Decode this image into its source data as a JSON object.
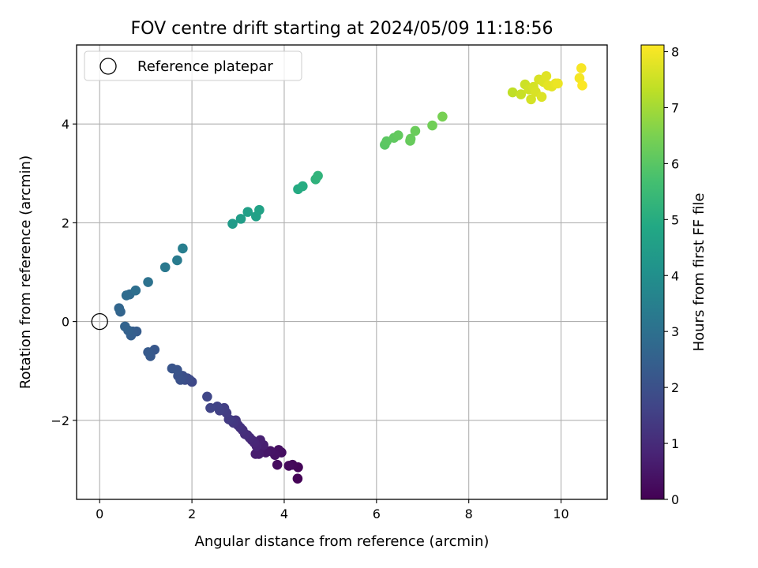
{
  "chart_data": {
    "type": "scatter",
    "title": "FOV centre drift starting at 2024/05/09 11:18:56",
    "xlabel": "Angular distance from reference (arcmin)",
    "ylabel": "Rotation from reference (arcmin)",
    "xlim": [
      -0.5,
      11.0
    ],
    "ylim": [
      -3.6,
      5.6
    ],
    "xticks": [
      0,
      2,
      4,
      6,
      8,
      10
    ],
    "xtick_labels": [
      "0",
      "2",
      "4",
      "6",
      "8",
      "10"
    ],
    "yticks": [
      -2,
      0,
      2,
      4
    ],
    "ytick_labels": [
      "−2",
      "0",
      "2",
      "4"
    ],
    "grid": true,
    "legend": {
      "position": "top-left",
      "entries": [
        "Reference platepar"
      ]
    },
    "reference_point": {
      "x": 0,
      "y": 0,
      "marker": "open-circle"
    },
    "colorbar": {
      "label": "Hours from first FF file",
      "colormap": "viridis",
      "range": [
        0,
        8.12
      ],
      "ticks": [
        0,
        1,
        2,
        3,
        4,
        5,
        6,
        7,
        8
      ],
      "tick_labels": [
        "0",
        "1",
        "2",
        "3",
        "4",
        "5",
        "6",
        "7",
        "8"
      ]
    },
    "series": [
      {
        "points": [
          [
            4.29,
            -3.18,
            0.05
          ],
          [
            4.3,
            -2.95,
            0.1
          ],
          [
            4.18,
            -2.9,
            0.15
          ],
          [
            4.1,
            -2.92,
            0.2
          ],
          [
            3.85,
            -2.9,
            0.25
          ],
          [
            3.94,
            -2.65,
            0.3
          ],
          [
            3.88,
            -2.6,
            0.35
          ],
          [
            3.8,
            -2.7,
            0.4
          ],
          [
            3.7,
            -2.62,
            0.45
          ],
          [
            3.6,
            -2.65,
            0.5
          ],
          [
            3.5,
            -2.55,
            0.55
          ],
          [
            3.45,
            -2.68,
            0.6
          ],
          [
            3.38,
            -2.68,
            0.65
          ],
          [
            3.55,
            -2.5,
            0.7
          ],
          [
            3.48,
            -2.4,
            0.75
          ],
          [
            3.4,
            -2.52,
            0.8
          ],
          [
            3.35,
            -2.45,
            0.85
          ],
          [
            3.3,
            -2.4,
            0.9
          ],
          [
            3.25,
            -2.35,
            0.95
          ],
          [
            3.2,
            -2.3,
            1.0
          ],
          [
            3.15,
            -2.28,
            1.05
          ],
          [
            3.1,
            -2.2,
            1.1
          ],
          [
            3.05,
            -2.15,
            1.15
          ],
          [
            3.0,
            -2.1,
            1.2
          ],
          [
            2.95,
            -2.0,
            1.25
          ],
          [
            2.9,
            -2.05,
            1.3
          ],
          [
            2.85,
            -2.0,
            1.35
          ],
          [
            2.8,
            -1.98,
            1.4
          ],
          [
            2.75,
            -1.85,
            1.45
          ],
          [
            2.7,
            -1.75,
            1.5
          ],
          [
            2.6,
            -1.8,
            1.55
          ],
          [
            2.55,
            -1.72,
            1.6
          ],
          [
            2.4,
            -1.75,
            1.65
          ],
          [
            2.33,
            -1.52,
            1.7
          ],
          [
            2.0,
            -1.22,
            1.75
          ],
          [
            1.95,
            -1.18,
            1.8
          ],
          [
            1.9,
            -1.15,
            1.85
          ],
          [
            1.85,
            -1.18,
            1.9
          ],
          [
            1.8,
            -1.1,
            1.95
          ],
          [
            1.75,
            -1.18,
            2.0
          ],
          [
            1.7,
            -1.1,
            2.05
          ],
          [
            1.68,
            -0.98,
            2.1
          ],
          [
            1.57,
            -0.95,
            2.15
          ],
          [
            1.19,
            -0.57,
            2.2
          ],
          [
            1.1,
            -0.7,
            2.25
          ],
          [
            1.05,
            -0.62,
            2.3
          ],
          [
            0.8,
            -0.2,
            2.35
          ],
          [
            0.72,
            -0.2,
            2.4
          ],
          [
            0.68,
            -0.28,
            2.45
          ],
          [
            0.62,
            -0.18,
            2.5
          ],
          [
            0.55,
            -0.1,
            2.55
          ],
          [
            0.45,
            0.2,
            2.6
          ],
          [
            0.42,
            0.27,
            2.65
          ],
          [
            0.65,
            0.55,
            2.8
          ],
          [
            0.58,
            0.53,
            2.85
          ],
          [
            0.78,
            0.63,
            2.95
          ],
          [
            1.05,
            0.8,
            3.05
          ],
          [
            1.42,
            1.1,
            3.25
          ],
          [
            1.68,
            1.24,
            3.35
          ],
          [
            1.8,
            1.48,
            3.45
          ],
          [
            2.88,
            1.98,
            4.4
          ],
          [
            3.06,
            2.08,
            4.5
          ],
          [
            3.21,
            2.22,
            4.55
          ],
          [
            3.39,
            2.13,
            4.6
          ],
          [
            3.46,
            2.26,
            4.65
          ],
          [
            4.3,
            2.68,
            4.95
          ],
          [
            4.4,
            2.74,
            5.0
          ],
          [
            4.68,
            2.88,
            5.2
          ],
          [
            4.73,
            2.95,
            5.25
          ],
          [
            6.18,
            3.58,
            6.0
          ],
          [
            6.22,
            3.65,
            6.05
          ],
          [
            6.38,
            3.72,
            6.1
          ],
          [
            6.47,
            3.77,
            6.15
          ],
          [
            6.73,
            3.66,
            6.2
          ],
          [
            6.74,
            3.7,
            6.22
          ],
          [
            6.84,
            3.86,
            6.25
          ],
          [
            7.21,
            3.97,
            6.35
          ],
          [
            7.43,
            4.15,
            6.45
          ],
          [
            8.95,
            4.64,
            7.35
          ],
          [
            9.13,
            4.6,
            7.45
          ],
          [
            9.22,
            4.8,
            7.5
          ],
          [
            9.3,
            4.7,
            7.55
          ],
          [
            9.35,
            4.5,
            7.6
          ],
          [
            9.4,
            4.75,
            7.6
          ],
          [
            9.45,
            4.65,
            7.65
          ],
          [
            9.52,
            4.9,
            7.65
          ],
          [
            9.58,
            4.55,
            7.7
          ],
          [
            9.62,
            4.85,
            7.7
          ],
          [
            9.68,
            4.97,
            7.75
          ],
          [
            9.72,
            4.78,
            7.8
          ],
          [
            9.8,
            4.76,
            7.8
          ],
          [
            9.88,
            4.82,
            7.85
          ],
          [
            9.93,
            4.82,
            7.9
          ],
          [
            10.4,
            4.93,
            8.0
          ],
          [
            10.44,
            5.13,
            8.05
          ],
          [
            10.46,
            4.78,
            8.1
          ]
        ]
      }
    ]
  }
}
